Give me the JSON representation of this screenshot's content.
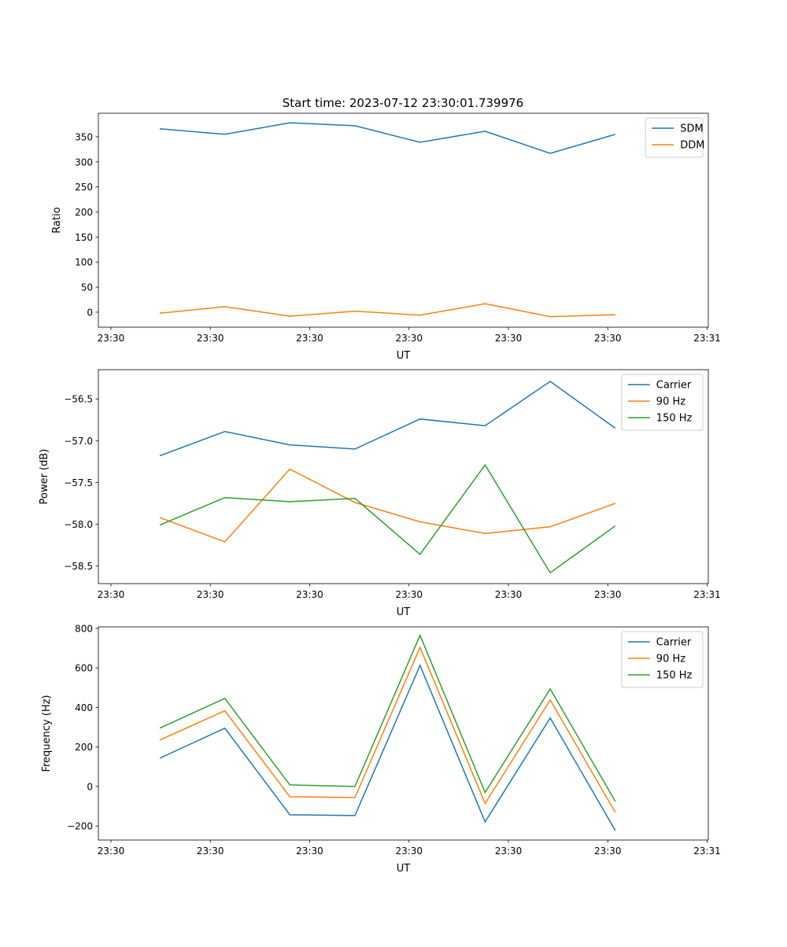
{
  "title": "Start time: 2023-07-12 23:30:01.739976",
  "colors": {
    "c0": "#1f77b4",
    "c1": "#ff7f0e",
    "c2": "#2ca02c"
  },
  "chart_data": [
    {
      "type": "line",
      "xlabel": "UT",
      "ylabel": "Ratio",
      "x": [
        0,
        1,
        2,
        3,
        4,
        5,
        6,
        7
      ],
      "xlim": [
        -0.943,
        8.43
      ],
      "xticks": [
        -0.75,
        0.777,
        2.304,
        3.831,
        5.358,
        6.885,
        8.412
      ],
      "xticklabels": [
        "23:30",
        "23:30",
        "23:30",
        "23:30",
        "23:30",
        "23:30",
        "23:31"
      ],
      "ylim": [
        -30,
        397
      ],
      "yticks": [
        0,
        50,
        100,
        150,
        200,
        250,
        300,
        350
      ],
      "yticklabels": [
        "0",
        "50",
        "100",
        "150",
        "200",
        "250",
        "300",
        "350"
      ],
      "legend": "top-right",
      "series": [
        {
          "name": "SDM",
          "color": "#1f77b4",
          "values": [
            366,
            355,
            378,
            372,
            339,
            361,
            317,
            355
          ]
        },
        {
          "name": "DDM",
          "color": "#ff7f0e",
          "values": [
            -2,
            11,
            -8,
            2,
            -6,
            17,
            -9,
            -5
          ]
        }
      ]
    },
    {
      "type": "line",
      "xlabel": "UT",
      "ylabel": "Power (dB)",
      "x": [
        0,
        1,
        2,
        3,
        4,
        5,
        6,
        7
      ],
      "xlim": [
        -0.943,
        8.43
      ],
      "xticks": [
        -0.75,
        0.777,
        2.304,
        3.831,
        5.358,
        6.885,
        8.412
      ],
      "xticklabels": [
        "23:30",
        "23:30",
        "23:30",
        "23:30",
        "23:30",
        "23:30",
        "23:31"
      ],
      "ylim": [
        -58.71,
        -56.15
      ],
      "yticks": [
        -58.5,
        -58.0,
        -57.5,
        -57.0,
        -56.5
      ],
      "yticklabels": [
        "−58.5",
        "−58.0",
        "−57.5",
        "−57.0",
        "−56.5"
      ],
      "legend": "top-right",
      "series": [
        {
          "name": "Carrier",
          "color": "#1f77b4",
          "values": [
            -57.18,
            -56.89,
            -57.05,
            -57.1,
            -56.74,
            -56.82,
            -56.29,
            -56.85
          ]
        },
        {
          "name": "90 Hz",
          "color": "#ff7f0e",
          "values": [
            -57.92,
            -58.21,
            -57.34,
            -57.74,
            -57.97,
            -58.11,
            -58.03,
            -57.75
          ]
        },
        {
          "name": "150 Hz",
          "color": "#2ca02c",
          "values": [
            -58.01,
            -57.68,
            -57.73,
            -57.69,
            -58.36,
            -57.29,
            -58.58,
            -58.02
          ]
        }
      ]
    },
    {
      "type": "line",
      "xlabel": "UT",
      "ylabel": "Frequency (Hz)",
      "x": [
        0,
        1,
        2,
        3,
        4,
        5,
        6,
        7
      ],
      "xlim": [
        -0.943,
        8.43
      ],
      "xticks": [
        -0.75,
        0.777,
        2.304,
        3.831,
        5.358,
        6.885,
        8.412
      ],
      "xticklabels": [
        "23:30",
        "23:30",
        "23:30",
        "23:30",
        "23:30",
        "23:30",
        "23:31"
      ],
      "ylim": [
        -271,
        808
      ],
      "yticks": [
        -200,
        0,
        200,
        400,
        600,
        800
      ],
      "yticklabels": [
        "−200",
        "0",
        "200",
        "400",
        "600",
        "800"
      ],
      "legend": "top-right",
      "series": [
        {
          "name": "Carrier",
          "color": "#1f77b4",
          "values": [
            143,
            295,
            -143,
            -147,
            613,
            -179,
            347,
            -223
          ]
        },
        {
          "name": "90 Hz",
          "color": "#ff7f0e",
          "values": [
            235,
            383,
            -52,
            -56,
            704,
            -86,
            438,
            -131
          ]
        },
        {
          "name": "150 Hz",
          "color": "#2ca02c",
          "values": [
            295,
            446,
            8,
            0,
            765,
            -30,
            494,
            -75
          ]
        }
      ]
    }
  ]
}
